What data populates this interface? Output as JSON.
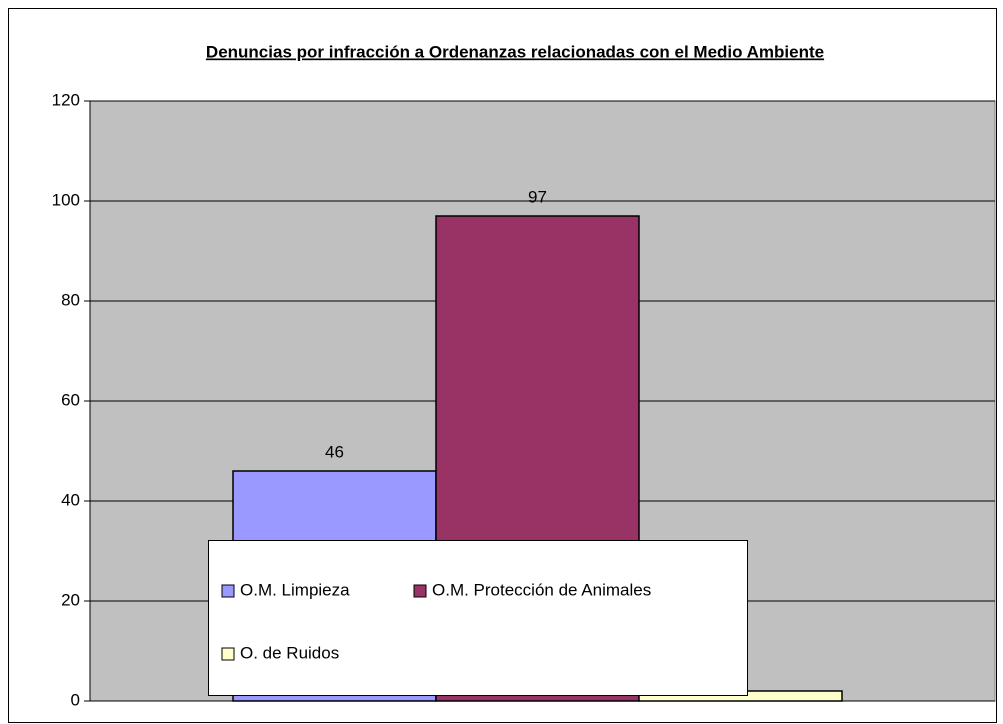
{
  "chart_data": {
    "type": "bar",
    "title": "Denuncias por infracción a  Ordenanzas relacionadas con el Medio Ambiente",
    "categories": [
      null
    ],
    "series": [
      {
        "name": "O.M. Limpieza",
        "color": "#9999ff",
        "values": [
          46
        ]
      },
      {
        "name": "O.M. Protección de Animales",
        "color": "#993366",
        "values": [
          97
        ]
      },
      {
        "name": "O. de Ruidos",
        "color": "#ffffcc",
        "values": [
          2
        ]
      }
    ],
    "ylim": [
      0,
      120
    ],
    "yticks": [
      0,
      20,
      40,
      60,
      80,
      100,
      120
    ],
    "grid": true,
    "legend": "bottom"
  }
}
